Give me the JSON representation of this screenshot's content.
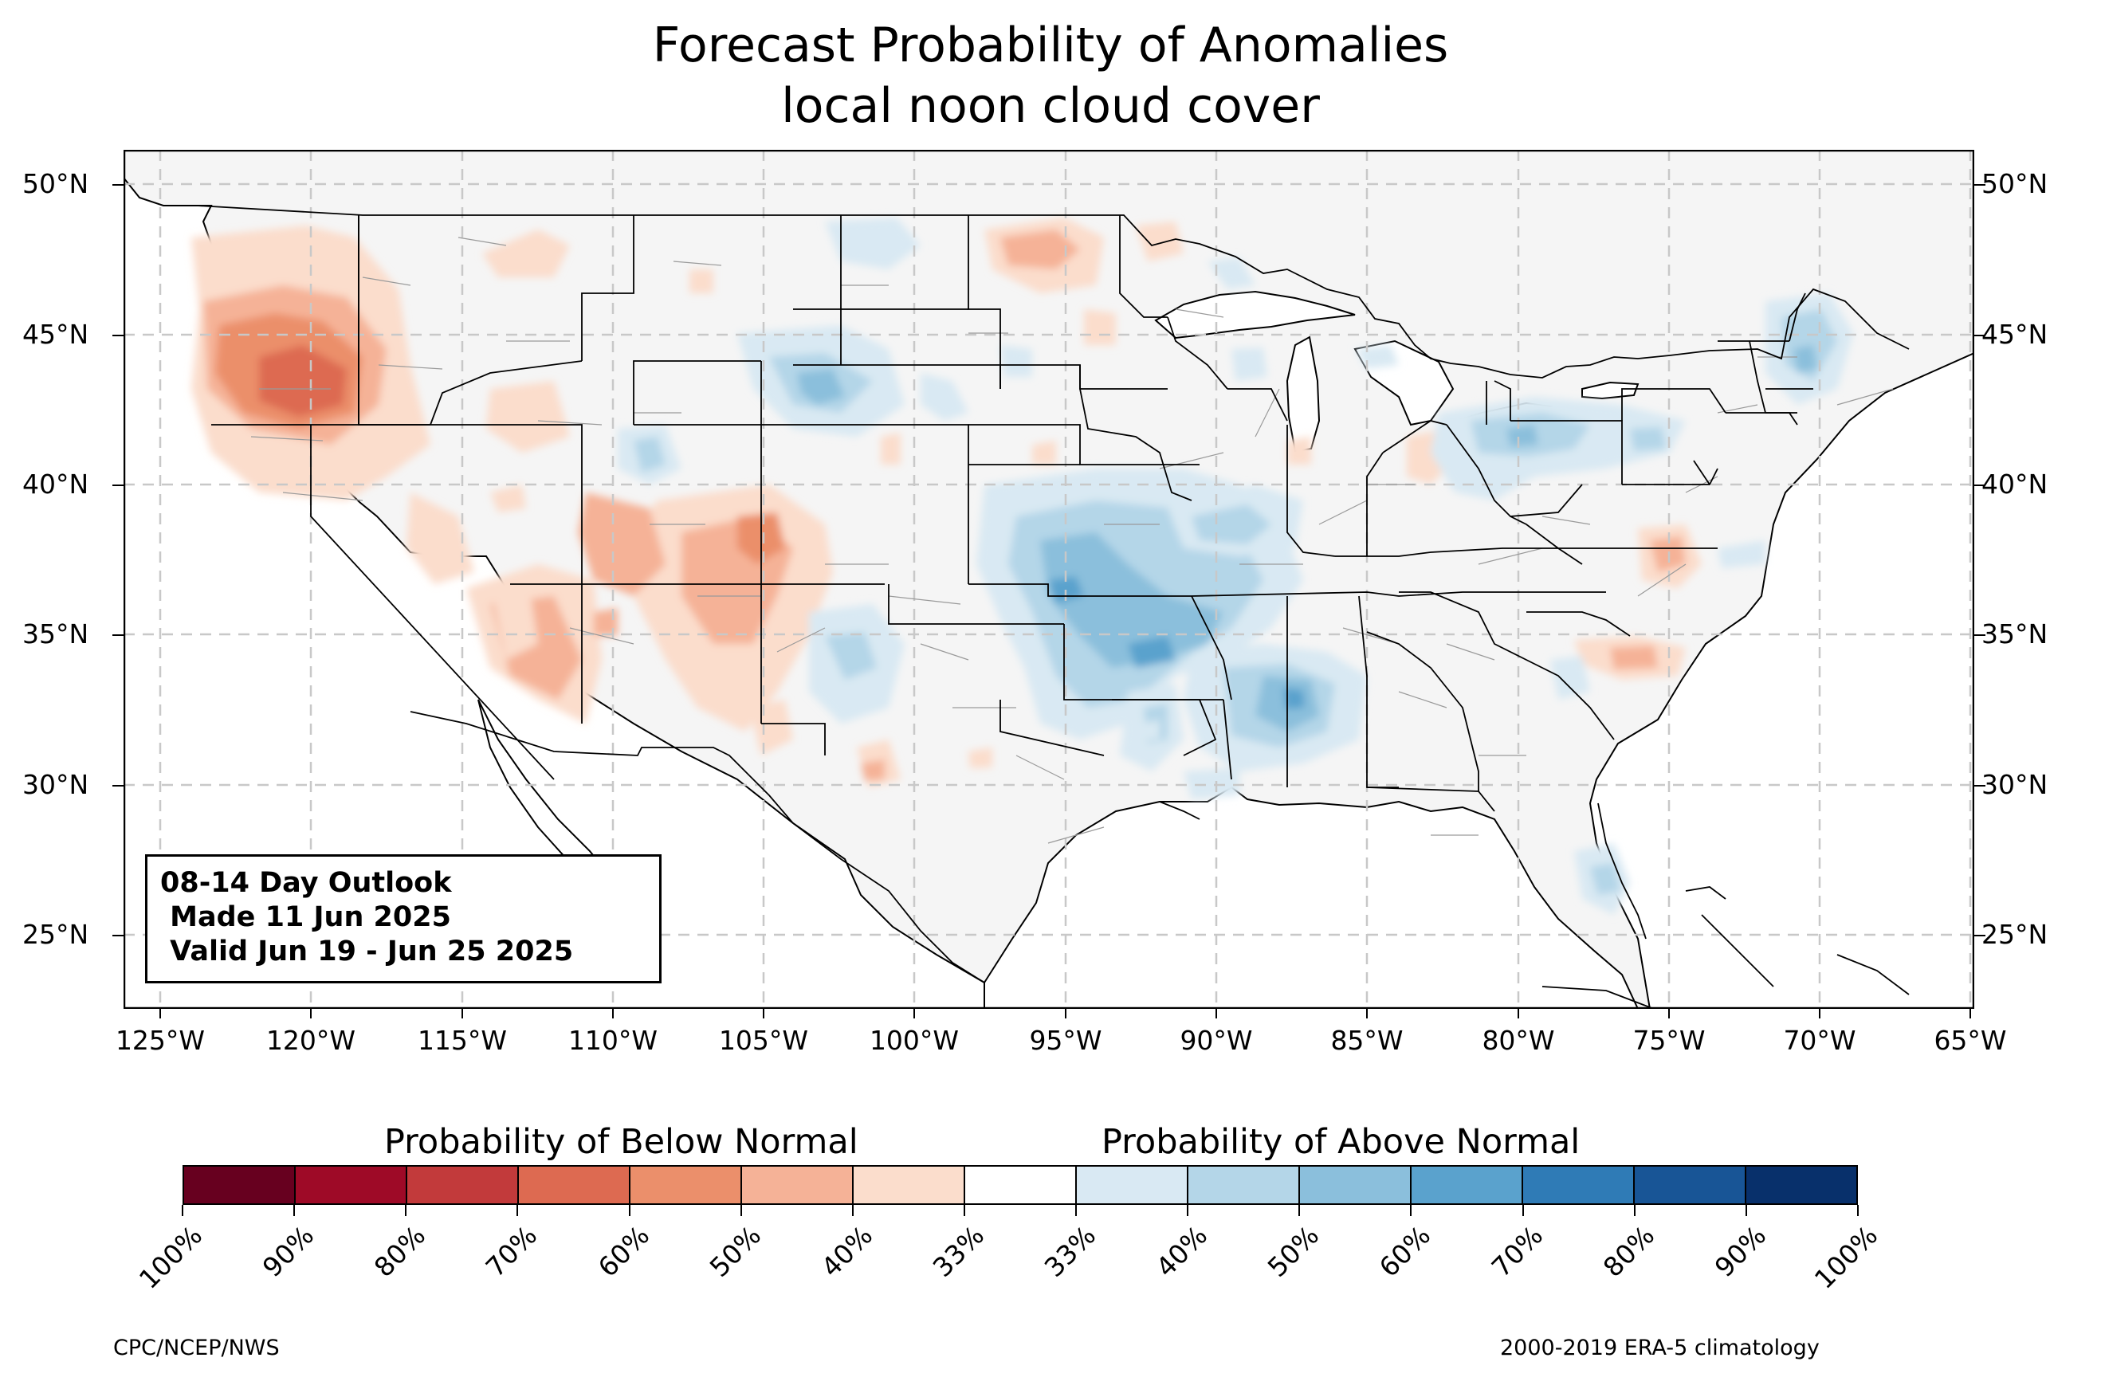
{
  "title": {
    "line1": "Forecast Probability of Anomalies",
    "line2": "local noon cloud cover"
  },
  "outlook": {
    "line1": "08-14 Day Outlook",
    "line2": " Made 11 Jun 2025",
    "line3": " Valid Jun 19 - Jun 25 2025"
  },
  "axes": {
    "lat_labels": [
      "50°N",
      "45°N",
      "40°N",
      "35°N",
      "30°N",
      "25°N"
    ],
    "lon_labels": [
      "125°W",
      "120°W",
      "115°W",
      "110°W",
      "105°W",
      "100°W",
      "95°W",
      "90°W",
      "85°W",
      "80°W",
      "75°W",
      "70°W",
      "65°W"
    ],
    "lat_range": [
      22.8,
      51.3
    ],
    "lon_range": [
      -126.2,
      -64.9
    ],
    "grid": true
  },
  "colorbar": {
    "below_title": "Probability of Below Normal",
    "above_title": "Probability of Above Normal",
    "ticks": [
      "100%",
      "90%",
      "80%",
      "70%",
      "60%",
      "50%",
      "40%",
      "33%",
      "33%",
      "40%",
      "50%",
      "60%",
      "70%",
      "80%",
      "90%",
      "100%"
    ],
    "colors": [
      "#67001f",
      "#9e0a27",
      "#c23a3b",
      "#dd6a51",
      "#eb8f6b",
      "#f5b297",
      "#fbddcc",
      "#ffffff",
      "#d9e9f3",
      "#b4d6e8",
      "#8bbfdc",
      "#5aa2cd",
      "#2f7bb6",
      "#185596",
      "#08306b"
    ]
  },
  "footer": {
    "left": "CPC/NCEP/NWS",
    "right": "2000-2019 ERA-5 climatology"
  },
  "map": {
    "land_color": "#f5f5f5",
    "water_color": "#ffffff"
  }
}
